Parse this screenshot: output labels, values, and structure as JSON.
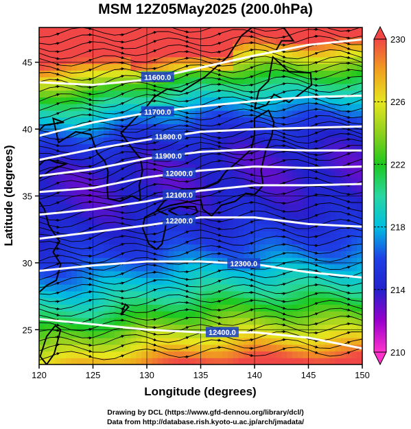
{
  "title": "MSM 12Z05May2025 (200.0hPa)",
  "footer": {
    "line1": "Drawing by DCL (https://www.gfd-dennou.org/library/dcl/)",
    "line2": "Data from http://database.rish.kyoto-u.ac.jp/arch/jmadata/"
  },
  "chart_data": {
    "type": "heatmap",
    "title": "MSM 12Z05May2025 (200.0hPa)",
    "xlabel": "Longitude (degrees)",
    "ylabel": "Latitude  (degrees)",
    "xlim": [
      120,
      150
    ],
    "ylim": [
      22.4,
      47.6
    ],
    "x_ticks": [
      120,
      125,
      130,
      135,
      140,
      145,
      150
    ],
    "y_ticks": [
      25,
      30,
      35,
      40,
      45
    ],
    "colorbar": {
      "min": 210,
      "max": 230,
      "ticks": [
        210,
        214,
        218,
        222,
        226,
        230
      ],
      "colors": [
        "#ff33cc",
        "#9900cc",
        "#2222cc",
        "#1e40e6",
        "#00bfe0",
        "#28d7a0",
        "#1ec81e",
        "#8fd01e",
        "#e6e61e",
        "#f0a01e",
        "#f04646"
      ]
    },
    "contours": [
      {
        "label": "11600.0",
        "points": [
          [
            120,
            43.5
          ],
          [
            125,
            43.3
          ],
          [
            130,
            43.7
          ],
          [
            135,
            44.6
          ],
          [
            140,
            45.5
          ],
          [
            145,
            46.3
          ],
          [
            150,
            46.7
          ]
        ]
      },
      {
        "label": "11700.0",
        "points": [
          [
            120,
            39.5
          ],
          [
            125,
            40.5
          ],
          [
            130,
            41.2
          ],
          [
            135,
            41.7
          ],
          [
            140,
            42.1
          ],
          [
            145,
            42.4
          ],
          [
            150,
            42.5
          ]
        ]
      },
      {
        "label": "11800.0",
        "points": [
          [
            120,
            37.7
          ],
          [
            125,
            38.5
          ],
          [
            130,
            39.2
          ],
          [
            135,
            39.8
          ],
          [
            140,
            40.0
          ],
          [
            145,
            40.1
          ],
          [
            150,
            40.2
          ]
        ]
      },
      {
        "label": "11900.0",
        "points": [
          [
            120,
            36.5
          ],
          [
            125,
            37.0
          ],
          [
            130,
            37.8
          ],
          [
            135,
            38.3
          ],
          [
            140,
            38.5
          ],
          [
            145,
            38.4
          ],
          [
            150,
            38.4
          ]
        ]
      },
      {
        "label": "12000.0",
        "points": [
          [
            120,
            35.3
          ],
          [
            125,
            35.6
          ],
          [
            130,
            36.4
          ],
          [
            135,
            36.9
          ],
          [
            140,
            37.2
          ],
          [
            145,
            37.1
          ],
          [
            150,
            37.2
          ]
        ]
      },
      {
        "label": "12100.0",
        "points": [
          [
            120,
            33.6
          ],
          [
            125,
            34.0
          ],
          [
            130,
            34.6
          ],
          [
            135,
            35.4
          ],
          [
            140,
            35.8
          ],
          [
            145,
            35.8
          ],
          [
            150,
            35.9
          ]
        ]
      },
      {
        "label": "12200.0",
        "points": [
          [
            120,
            31.8
          ],
          [
            125,
            32.3
          ],
          [
            130,
            32.8
          ],
          [
            135,
            33.4
          ],
          [
            140,
            33.4
          ],
          [
            145,
            32.9
          ],
          [
            150,
            32.7
          ]
        ]
      },
      {
        "label": "12300.0",
        "points": [
          [
            120,
            29.4
          ],
          [
            125,
            29.8
          ],
          [
            130,
            30.1
          ],
          [
            135,
            30.1
          ],
          [
            140,
            29.9
          ],
          [
            145,
            29.3
          ],
          [
            150,
            28.9
          ]
        ]
      },
      {
        "label": "12400.0",
        "points": [
          [
            120,
            25.8
          ],
          [
            125,
            25.4
          ],
          [
            130,
            25.0
          ],
          [
            135,
            24.8
          ],
          [
            140,
            24.8
          ],
          [
            145,
            24.4
          ],
          [
            150,
            23.6
          ]
        ]
      }
    ],
    "grid": true,
    "legend": "colorbar right"
  }
}
